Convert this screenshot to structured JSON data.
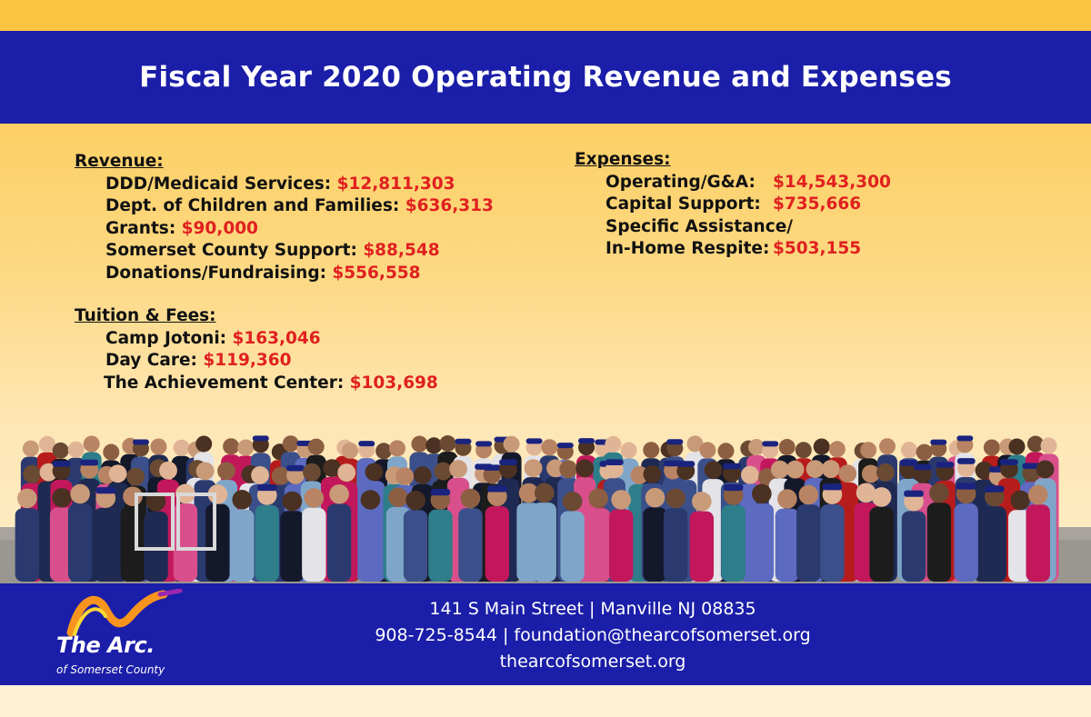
{
  "title": "Fiscal Year 2020 Operating Revenue and Expenses",
  "revenue": {
    "heading": "Revenue:",
    "items": [
      {
        "label": "DDD/Medicaid Services:",
        "amount": "$12,811,303"
      },
      {
        "label": "Dept. of Children and Families:",
        "amount": "$636,313"
      },
      {
        "label": "Grants:",
        "amount": "$90,000"
      },
      {
        "label": "Somerset County Support:",
        "amount": "$88,548"
      },
      {
        "label": "Donations/Fundraising:",
        "amount": "$556,558"
      }
    ]
  },
  "tuition": {
    "heading": "Tuition & Fees:",
    "items": [
      {
        "label": "Camp Jotoni:",
        "amount": "$163,046"
      },
      {
        "label": "Day Care:",
        "amount": "$119,360"
      },
      {
        "label": "The Achievement Center:",
        "amount": "$103,698"
      }
    ]
  },
  "expenses": {
    "heading": "Expenses:",
    "items": [
      {
        "label": "Operating/G&A:",
        "amount": "$14,543,300"
      },
      {
        "label": "Capital Support:",
        "amount": "$735,666"
      },
      {
        "label": "Specific Assistance/",
        "amount": ""
      },
      {
        "label": "In-Home Respite:",
        "amount": "$503,155"
      }
    ]
  },
  "logo": {
    "name": "The Arc.",
    "subtitle": "of Somerset County"
  },
  "footer": {
    "address": "141 S Main Street | Manville NJ 08835",
    "contact": "908-725-8544 | foundation@thearcofsomerset.org",
    "website": "thearcofsomerset.org"
  },
  "colors": {
    "band_blue": "#1b1ea8",
    "amount_red": "#e02020",
    "background_yellow": "#fcc84a"
  },
  "photo": {
    "icon": "group-photo"
  }
}
